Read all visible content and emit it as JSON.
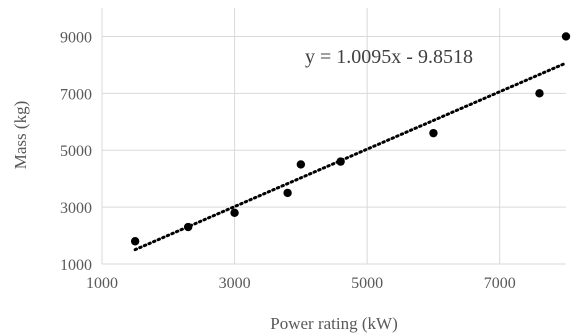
{
  "chart_data": {
    "type": "scatter",
    "xlabel": "Power rating (kW)",
    "ylabel": "Mass (kg)",
    "xlim": [
      1000,
      8000
    ],
    "ylim": [
      1000,
      10000
    ],
    "x_ticks": [
      1000,
      3000,
      5000,
      7000
    ],
    "y_ticks": [
      1000,
      3000,
      5000,
      7000,
      9000
    ],
    "x_tick_labels": [
      "1000",
      "3000",
      "5000",
      "7000"
    ],
    "y_tick_labels": [
      "1000",
      "3000",
      "5000",
      "7000",
      "9000"
    ],
    "grid": true,
    "point_color": "#000000",
    "series": [
      {
        "points": [
          {
            "x": 1500,
            "y": 1800
          },
          {
            "x": 2300,
            "y": 2300
          },
          {
            "x": 3000,
            "y": 2800
          },
          {
            "x": 3800,
            "y": 3500
          },
          {
            "x": 4000,
            "y": 4500
          },
          {
            "x": 4600,
            "y": 4600
          },
          {
            "x": 6000,
            "y": 5600
          },
          {
            "x": 7600,
            "y": 7000
          },
          {
            "x": 8000,
            "y": 9000
          }
        ]
      }
    ],
    "trendline": {
      "type": "linear",
      "slope": 1.0095,
      "intercept": -9.8518,
      "x_range": [
        1500,
        8000
      ],
      "style": "dotted",
      "label": "y = 1.0095x - 9.8518"
    }
  }
}
